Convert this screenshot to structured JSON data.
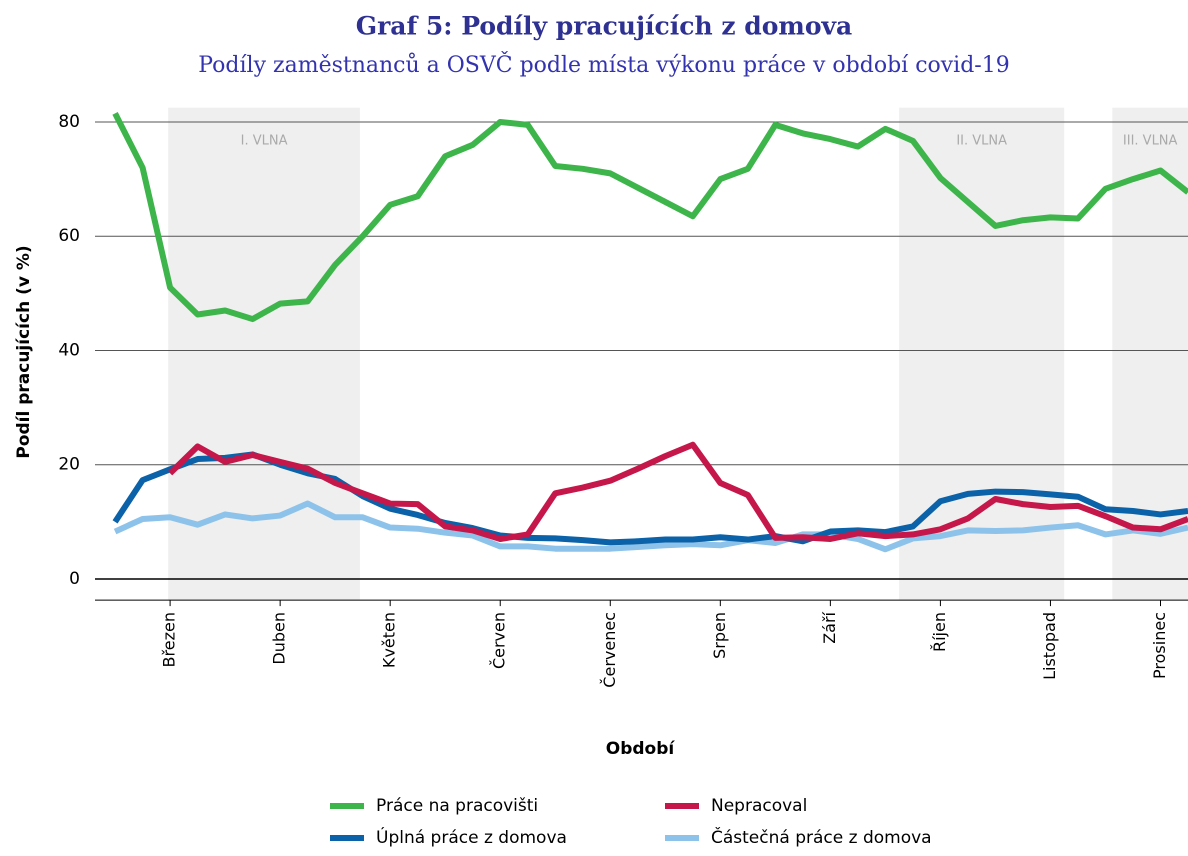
{
  "chart_data": {
    "type": "line",
    "title": "Graf 5: Podíly pracujících z domova",
    "subtitle": "Podíly zaměstnanců a OSVČ podle místa výkonu práce v období covid-19",
    "x_label": "Období",
    "y_label": "Podíl pracujících (v %)",
    "x": [
      0,
      1,
      2,
      3,
      4,
      5,
      6,
      7,
      8,
      9,
      10,
      11,
      12,
      13,
      14,
      15,
      16,
      17,
      18,
      19,
      20,
      21,
      22,
      23,
      24,
      25,
      26,
      27,
      28,
      29,
      30,
      31,
      32,
      33,
      34,
      35,
      36,
      37,
      38,
      39
    ],
    "xlim": [
      -0.73,
      39
    ],
    "xticks": [
      {
        "value": 2,
        "label": "Březen"
      },
      {
        "value": 6,
        "label": "Duben"
      },
      {
        "value": 10,
        "label": "Květen"
      },
      {
        "value": 14,
        "label": "Červen"
      },
      {
        "value": 18,
        "label": "Červenec"
      },
      {
        "value": 22,
        "label": "Srpen"
      },
      {
        "value": 26,
        "label": "Září"
      },
      {
        "value": 30,
        "label": "Říjen"
      },
      {
        "value": 34,
        "label": "Listopad"
      },
      {
        "value": 38,
        "label": "Prosinec"
      }
    ],
    "ylim": [
      -3.7,
      82.5
    ],
    "yticks": [
      0,
      20,
      40,
      60,
      80
    ],
    "grid": true,
    "bands": [
      {
        "label": "I. VLNA",
        "start": 1.93,
        "end": 8.9
      },
      {
        "label": "II. VLNA",
        "start": 28.5,
        "end": 34.5
      },
      {
        "label": "III. VLNA",
        "start": 36.25,
        "end": 39
      }
    ],
    "series": [
      {
        "name": "Práce na pracovišti",
        "color": "#3db54a",
        "values": [
          81.5,
          72,
          51,
          46.3,
          47,
          45.5,
          48.2,
          48.6,
          55,
          60,
          65.5,
          67,
          74,
          76,
          80,
          79.5,
          72.3,
          71.8,
          71,
          68.5,
          66,
          63.5,
          70,
          71.8,
          79.5,
          78,
          77,
          75.7,
          78.8,
          76.7,
          70.2,
          66,
          61.8,
          62.8,
          63.3,
          63.1,
          68.3,
          70,
          71.5,
          67.7
        ]
      },
      {
        "name": "Nepracoval",
        "color": "#c5174a",
        "values": [
          null,
          null,
          18.5,
          23.2,
          20.5,
          21.7,
          20.5,
          19.3,
          16.8,
          15,
          13.2,
          13.1,
          9.2,
          8.5,
          7,
          7.8,
          15,
          16,
          17.2,
          19.3,
          21.5,
          23.5,
          16.8,
          14.7,
          7.2,
          7.3,
          7,
          8,
          7.5,
          7.8,
          8.7,
          10.6,
          14,
          13.1,
          12.6,
          12.8,
          11,
          9,
          8.7,
          10.5
        ]
      },
      {
        "name": "Úplná práce z domova",
        "color": "#0b62a8",
        "values": [
          10,
          17.3,
          19.2,
          21,
          21.2,
          21.8,
          20,
          18.5,
          17.5,
          14.5,
          12.3,
          11.2,
          9.8,
          8.9,
          7.6,
          7.2,
          7.1,
          6.8,
          6.4,
          6.6,
          6.9,
          6.9,
          7.3,
          6.9,
          7.5,
          6.6,
          8.3,
          8.5,
          8.2,
          9.2,
          13.6,
          14.9,
          15.3,
          15.2,
          14.8,
          14.4,
          12.2,
          11.9,
          11.3,
          11.9
        ]
      },
      {
        "name": "Částečná práce z domova",
        "color": "#8dc3ea",
        "values": [
          8.3,
          10.5,
          10.8,
          9.5,
          11.3,
          10.6,
          11.1,
          13.2,
          10.8,
          10.8,
          9,
          8.8,
          8.1,
          7.6,
          5.7,
          5.7,
          5.3,
          5.3,
          5.3,
          5.6,
          5.9,
          6.1,
          5.9,
          6.8,
          6.3,
          7.8,
          7.8,
          7,
          5.2,
          7.1,
          7.5,
          8.5,
          8.4,
          8.5,
          9,
          9.4,
          7.8,
          8.5,
          7.9,
          9
        ]
      }
    ]
  }
}
